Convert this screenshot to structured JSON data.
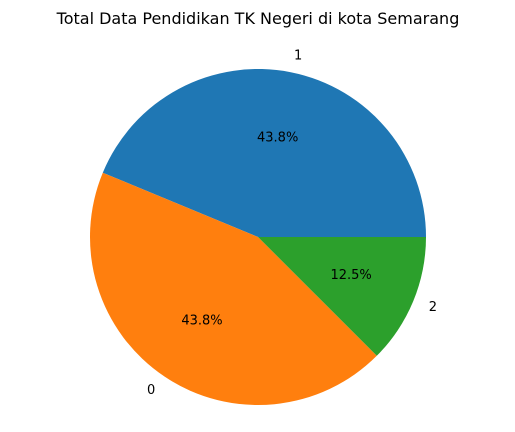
{
  "chart_data": {
    "type": "pie",
    "title": "Total Data Pendidikan TK Negeri di kota Semarang",
    "start_angle_deg": 0,
    "direction": "counterclockwise",
    "slices": [
      {
        "label": "1",
        "value": 43.75,
        "pct_label": "43.8%",
        "color": "#1f77b4"
      },
      {
        "label": "0",
        "value": 43.75,
        "pct_label": "43.8%",
        "color": "#ff7f0e"
      },
      {
        "label": "2",
        "value": 12.5,
        "pct_label": "12.5%",
        "color": "#2ca02c"
      }
    ]
  }
}
